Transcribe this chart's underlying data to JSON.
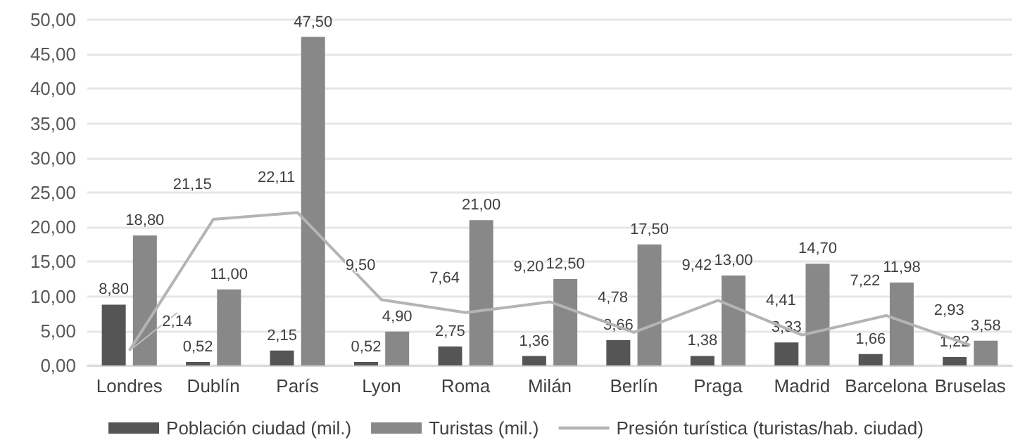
{
  "chart_data": {
    "type": "bar",
    "categories": [
      "Londres",
      "Dublín",
      "París",
      "Lyon",
      "Roma",
      "Milán",
      "Berlín",
      "Praga",
      "Madrid",
      "Barcelona",
      "Bruselas"
    ],
    "series": [
      {
        "name": "Población ciudad (mil.)",
        "color": "#555555",
        "values": [
          8.8,
          0.52,
          2.15,
          0.52,
          2.75,
          1.36,
          3.66,
          1.38,
          3.33,
          1.66,
          1.22
        ],
        "value_labels": [
          "8,80",
          "0,52",
          "2,15",
          "0,52",
          "2,75",
          "1,36",
          "3,66",
          "1,38",
          "3,33",
          "1,66",
          "1,22"
        ]
      },
      {
        "name": "Turistas (mil.)",
        "color": "#888888",
        "values": [
          18.8,
          11.0,
          47.5,
          4.9,
          21.0,
          12.5,
          17.5,
          13.0,
          14.7,
          11.98,
          3.58
        ],
        "value_labels": [
          "18,80",
          "11,00",
          "47,50",
          "4,90",
          "21,00",
          "12,50",
          "17,50",
          "13,00",
          "14,70",
          "11,98",
          "3,58"
        ]
      },
      {
        "name": "Presión turística (turistas/hab. ciudad)",
        "type": "line",
        "color": "#b4b4b4",
        "values": [
          2.14,
          21.15,
          22.11,
          9.5,
          7.64,
          9.2,
          4.78,
          9.42,
          4.41,
          7.22,
          2.93
        ],
        "value_labels": [
          "2,14",
          "21,15",
          "22,11",
          "9,50",
          "7,64",
          "9,20",
          "4,78",
          "9,42",
          "4,41",
          "7,22",
          "2,93"
        ]
      }
    ],
    "ylim": [
      0,
      50
    ],
    "yticks": [
      {
        "value": 0,
        "label": "0,00"
      },
      {
        "value": 5,
        "label": "5,00"
      },
      {
        "value": 10,
        "label": "10,00"
      },
      {
        "value": 15,
        "label": "15,00"
      },
      {
        "value": 20,
        "label": "20,00"
      },
      {
        "value": 25,
        "label": "25,00"
      },
      {
        "value": 30,
        "label": "30,00"
      },
      {
        "value": 35,
        "label": "35,00"
      },
      {
        "value": 40,
        "label": "40,00"
      },
      {
        "value": 45,
        "label": "45,00"
      },
      {
        "value": 50,
        "label": "50,00"
      }
    ],
    "grid": "y",
    "legend": "bottom",
    "marker": "none"
  }
}
